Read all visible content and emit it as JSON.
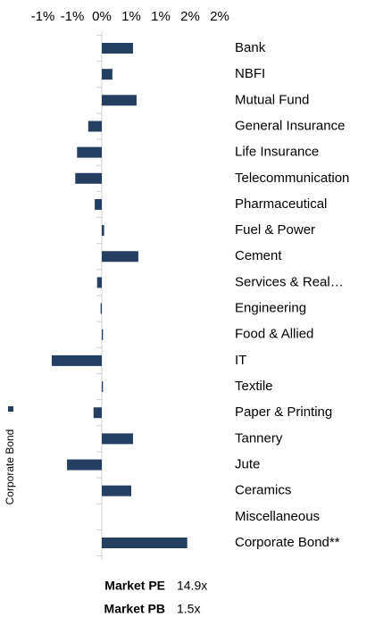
{
  "chart_data": {
    "type": "barh",
    "categories": [
      "Bank",
      "NBFI",
      "Mutual Fund",
      "General Insurance",
      "Life Insurance",
      "Telecommunication",
      "Pharmaceutical",
      "Fuel & Power",
      "Cement",
      "Services & Real…",
      "Engineering",
      "Food & Allied",
      "IT",
      "Textile",
      "Paper & Printing",
      "Tannery",
      "Jute",
      "Ceramics",
      "Miscellaneous",
      "Corporate Bond**"
    ],
    "series": [
      {
        "name": "Corporate Bond",
        "color": "#253f63",
        "values": [
          0.53,
          0.18,
          0.59,
          -0.23,
          -0.42,
          -0.45,
          -0.12,
          0.04,
          0.62,
          -0.08,
          -0.02,
          0.02,
          -0.85,
          0.02,
          -0.14,
          0.53,
          -0.59,
          0.5,
          0,
          1.45
        ]
      }
    ],
    "xlim": [
      -1,
      2
    ],
    "xticks": [
      {
        "value": -1,
        "label": "-1%"
      },
      {
        "value": -0.5,
        "label": "-1%"
      },
      {
        "value": 0,
        "label": "0%"
      },
      {
        "value": 0.5,
        "label": "1%"
      },
      {
        "value": 1,
        "label": "1%"
      },
      {
        "value": 1.5,
        "label": "2%"
      },
      {
        "value": 2,
        "label": "2%"
      }
    ],
    "legend_position": "left",
    "annotations": [
      {
        "label": "Market PE",
        "value": "14.9x"
      },
      {
        "label": "Market PB",
        "value": "1.5x"
      }
    ]
  }
}
